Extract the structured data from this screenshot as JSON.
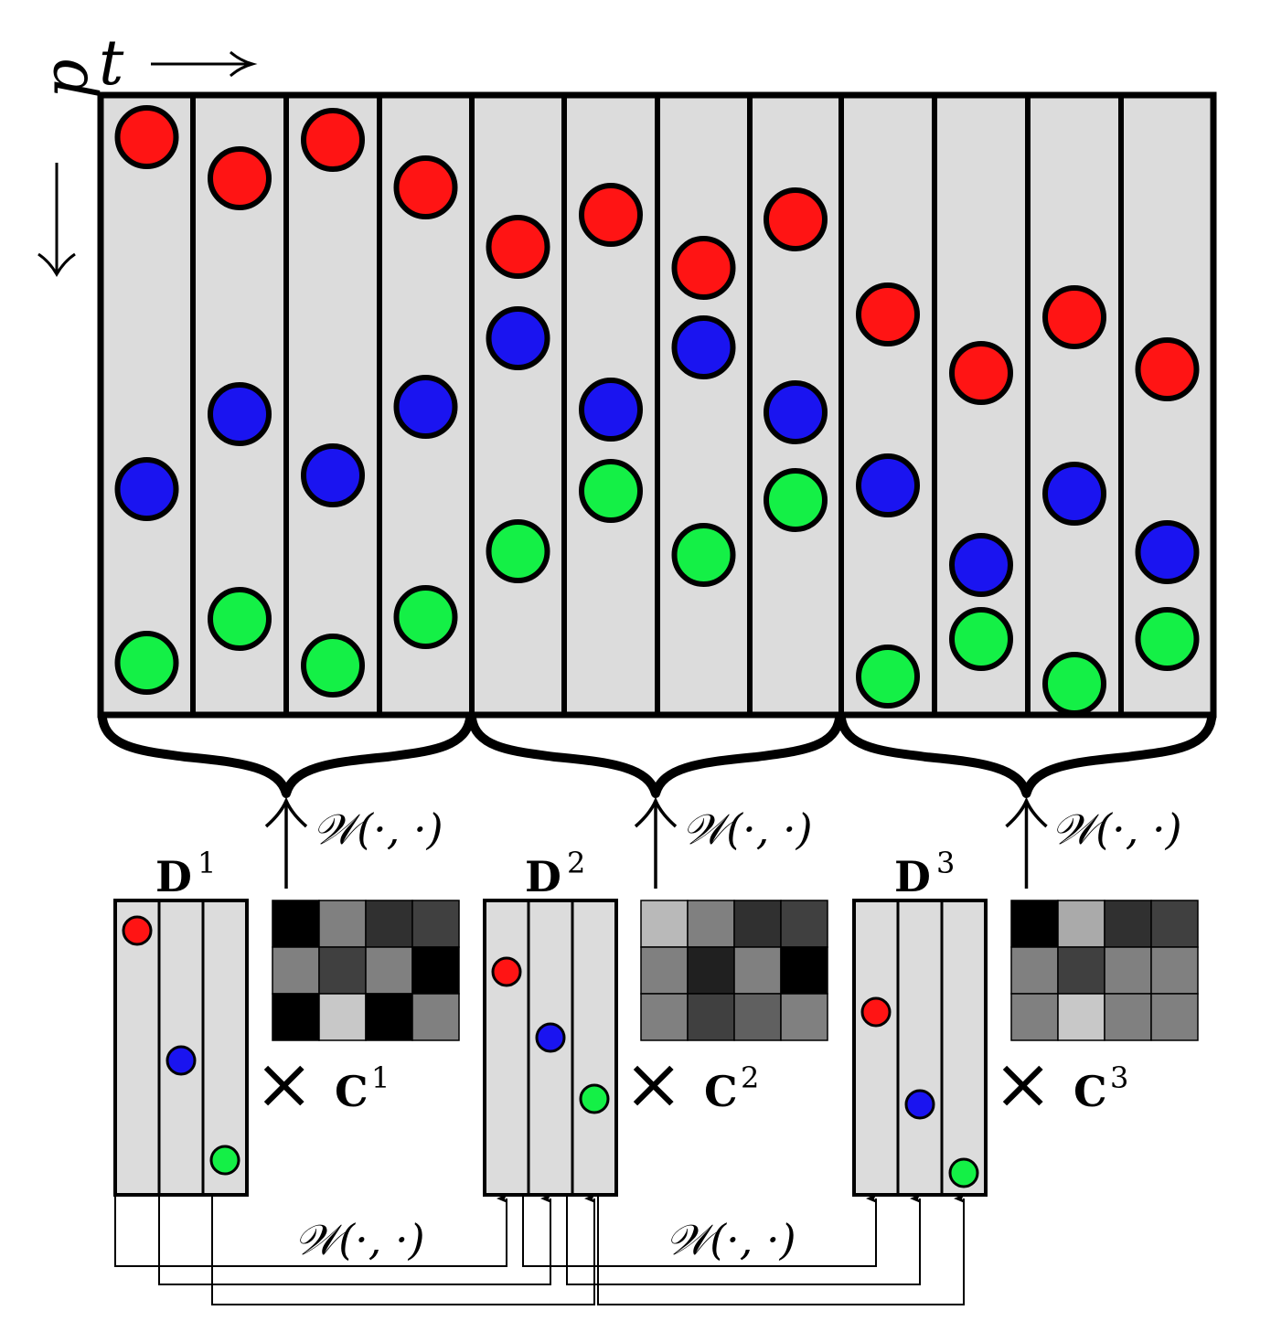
{
  "axis_labels": {
    "time": "t",
    "position": "p"
  },
  "operator_label": "𝒲(·, ·)",
  "times_symbol": "×",
  "colors": {
    "red": "#ff1414",
    "blue": "#1a14f0",
    "green": "#14f046",
    "panel": "#dcdcdc",
    "stroke": "#000000"
  },
  "dictionaries": [
    {
      "label": "D",
      "index": "1",
      "coef_label": "C",
      "coef_index": "1",
      "coef_gray": [
        [
          0,
          128,
          48,
          64
        ],
        [
          128,
          64,
          128,
          0
        ],
        [
          0,
          200,
          0,
          128
        ]
      ]
    },
    {
      "label": "D",
      "index": "2",
      "coef_label": "C",
      "coef_index": "2",
      "coef_gray": [
        [
          185,
          128,
          48,
          64
        ],
        [
          128,
          32,
          128,
          0
        ],
        [
          128,
          64,
          96,
          128
        ]
      ]
    },
    {
      "label": "D",
      "index": "3",
      "coef_label": "C",
      "coef_index": "3",
      "coef_gray": [
        [
          0,
          170,
          48,
          64
        ],
        [
          128,
          64,
          128,
          128
        ],
        [
          128,
          200,
          128,
          128
        ]
      ]
    }
  ]
}
